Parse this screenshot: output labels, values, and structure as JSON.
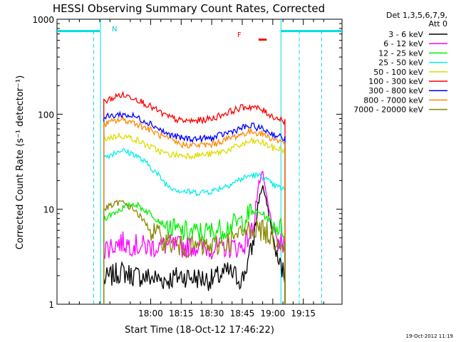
{
  "chart_data": {
    "type": "line",
    "title": "HESSI Observing Summary Count Rates, Corrected",
    "xlabel": "Start Time (18-Oct-12 17:46:22)",
    "ylabel": "Corrected Count Rate (s⁻¹ detector⁻¹)",
    "yscale": "log",
    "xlim_minutes": [
      -46,
      94
    ],
    "ylim": [
      1,
      1000
    ],
    "x_tick_labels": [
      "18:00",
      "18:15",
      "18:30",
      "18:45",
      "19:00",
      "19:15"
    ],
    "x_tick_minutes": [
      0,
      15,
      30,
      45,
      60,
      75
    ],
    "y_tick_labels": [
      "1",
      "10",
      "100",
      "1000"
    ],
    "y_tick_values": [
      1,
      10,
      100,
      1000
    ],
    "grid": false,
    "legend_title_lines": [
      "Det 1,3,5,6,7,9,",
      "Att 0"
    ],
    "legend_position": "right",
    "timestamp": "19-Oct-2012 11:19",
    "night_intervals_minutes": [
      [
        -46,
        -25
      ],
      [
        64,
        94
      ]
    ],
    "night_markers_x_minutes": [
      -28,
      73,
      84
    ],
    "saa_label": "N",
    "flare_label": "F",
    "flare_interval_minutes": [
      53,
      57
    ],
    "series": [
      {
        "name": "3 - 6 keV",
        "color": "#000000",
        "x": [
          -23,
          -15,
          -8,
          0,
          8,
          15,
          22,
          30,
          38,
          45,
          50,
          53,
          55,
          58,
          62,
          66
        ],
        "y": [
          1.8,
          2.2,
          2.0,
          1.9,
          1.8,
          2.0,
          1.9,
          1.8,
          2.2,
          1.8,
          4.0,
          12.0,
          18.0,
          9.0,
          3.0,
          2.0
        ]
      },
      {
        "name": "6 - 12 keV",
        "color": "#ff00ff",
        "x": [
          -23,
          -15,
          -8,
          0,
          8,
          15,
          22,
          30,
          38,
          45,
          50,
          53,
          55,
          58,
          62,
          66
        ],
        "y": [
          3.8,
          4.5,
          4.2,
          4.0,
          4.2,
          4.0,
          4.1,
          3.9,
          4.0,
          4.0,
          6.0,
          18.0,
          24.0,
          10.0,
          4.5,
          4.0
        ]
      },
      {
        "name": "12 - 25 keV",
        "color": "#00ee00",
        "x": [
          -23,
          -15,
          -8,
          0,
          8,
          15,
          22,
          30,
          38,
          45,
          50,
          55,
          60,
          66
        ],
        "y": [
          8.0,
          10.0,
          11.5,
          9.0,
          6.5,
          5.8,
          5.7,
          5.8,
          6.5,
          7.5,
          9.5,
          9.0,
          7.0,
          6.0
        ]
      },
      {
        "name": "25 - 50 keV",
        "color": "#00eeee",
        "x": [
          -23,
          -15,
          -8,
          0,
          8,
          15,
          22,
          30,
          38,
          45,
          50,
          55,
          60,
          66
        ],
        "y": [
          35,
          42,
          38,
          28,
          18,
          15.5,
          15,
          15.5,
          18,
          21,
          23,
          22,
          18,
          16
        ]
      },
      {
        "name": "50 - 100 keV",
        "color": "#dddd00",
        "x": [
          -23,
          -15,
          -8,
          0,
          8,
          15,
          22,
          30,
          38,
          45,
          50,
          55,
          60,
          66
        ],
        "y": [
          55,
          60,
          55,
          45,
          38,
          37,
          37,
          38,
          42,
          48,
          52,
          50,
          44,
          42
        ]
      },
      {
        "name": "100 - 300 keV",
        "color": "#ff0000",
        "x": [
          -23,
          -15,
          -8,
          0,
          8,
          15,
          22,
          30,
          38,
          45,
          50,
          55,
          60,
          66
        ],
        "y": [
          135,
          160,
          150,
          120,
          95,
          85,
          85,
          90,
          105,
          118,
          120,
          110,
          95,
          85
        ]
      },
      {
        "name": "300 - 800 keV",
        "color": "#0000ff",
        "x": [
          -23,
          -15,
          -8,
          0,
          8,
          15,
          22,
          30,
          38,
          45,
          50,
          55,
          60,
          66
        ],
        "y": [
          92,
          100,
          95,
          80,
          62,
          56,
          55,
          56,
          64,
          72,
          75,
          70,
          62,
          55
        ]
      },
      {
        "name": "800 - 7000 keV",
        "color": "#ff8800",
        "x": [
          -23,
          -15,
          -8,
          0,
          8,
          15,
          22,
          30,
          38,
          45,
          50,
          55,
          60,
          66
        ],
        "y": [
          78,
          88,
          82,
          68,
          55,
          48,
          47,
          48,
          55,
          62,
          66,
          62,
          55,
          50
        ]
      },
      {
        "name": "7000 - 20000 keV",
        "color": "#888800",
        "x": [
          -23,
          -15,
          -8,
          0,
          8,
          15,
          22,
          30,
          38,
          45,
          50,
          55,
          60,
          66
        ],
        "y": [
          10.0,
          12.0,
          10.0,
          6.0,
          4.5,
          4.0,
          4.0,
          4.0,
          4.5,
          5.5,
          6.5,
          6.0,
          5.0,
          4.5
        ]
      }
    ]
  }
}
